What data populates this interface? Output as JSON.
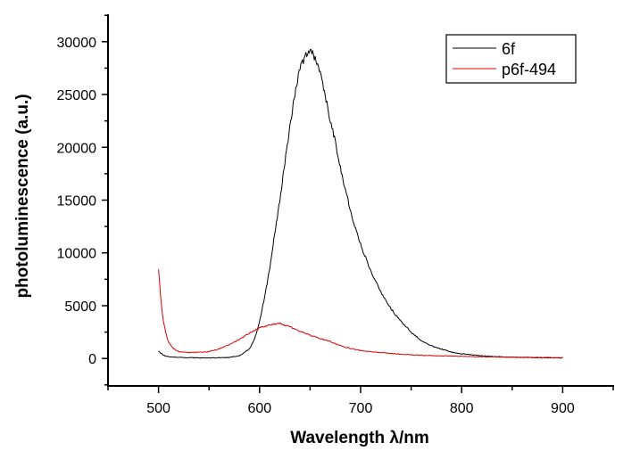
{
  "chart_data": {
    "type": "line",
    "title": "",
    "xlabel": "Wavelength λ/nm",
    "ylabel": "photoluminescence (a.u.)",
    "xlim": [
      450,
      950
    ],
    "ylim": [
      -2600,
      32600
    ],
    "xticks": [
      500,
      600,
      700,
      800,
      900
    ],
    "xticks_minor": [
      450,
      550,
      650,
      750,
      850,
      950
    ],
    "yticks": [
      0,
      5000,
      10000,
      15000,
      20000,
      25000,
      30000
    ],
    "yticks_minor": [
      -2500,
      2500,
      7500,
      12500,
      17500,
      22500,
      27500,
      32500
    ],
    "xtick_labels": [
      "500",
      "600",
      "700",
      "800",
      "900"
    ],
    "ytick_labels": [
      "0",
      "5000",
      "10000",
      "15000",
      "20000",
      "25000",
      "30000"
    ],
    "grid": false,
    "legend_position": "top-right",
    "series": [
      {
        "name": "6f",
        "color": "#000000",
        "x": [
          500,
          505,
          510,
          520,
          530,
          540,
          550,
          560,
          570,
          580,
          590,
          595,
          600,
          605,
          610,
          615,
          620,
          625,
          630,
          635,
          640,
          645,
          650,
          655,
          660,
          665,
          670,
          675,
          680,
          685,
          690,
          695,
          700,
          710,
          720,
          730,
          740,
          750,
          760,
          770,
          780,
          790,
          800,
          820,
          840,
          860,
          880,
          900
        ],
        "y": [
          700,
          300,
          150,
          100,
          80,
          60,
          60,
          70,
          100,
          250,
          900,
          1800,
          3500,
          5800,
          8500,
          11800,
          15000,
          18500,
          22000,
          25000,
          27500,
          28600,
          29100,
          28500,
          27000,
          25000,
          22500,
          20500,
          18000,
          16000,
          14000,
          12300,
          10800,
          8300,
          6300,
          4700,
          3500,
          2500,
          1700,
          1200,
          900,
          600,
          450,
          250,
          150,
          100,
          70,
          50
        ]
      },
      {
        "name": "p6f-494",
        "color": "#e00000",
        "x": [
          500,
          502,
          504,
          507,
          510,
          515,
          520,
          530,
          540,
          550,
          560,
          570,
          580,
          590,
          600,
          610,
          620,
          630,
          640,
          650,
          660,
          670,
          680,
          690,
          700,
          720,
          740,
          760,
          780,
          800,
          850,
          900
        ],
        "y": [
          8500,
          6000,
          4000,
          2500,
          1500,
          900,
          650,
          550,
          580,
          650,
          900,
          1300,
          1800,
          2400,
          2900,
          3200,
          3300,
          3000,
          2600,
          2200,
          1900,
          1600,
          1200,
          950,
          750,
          550,
          400,
          300,
          250,
          200,
          120,
          80
        ]
      }
    ]
  }
}
